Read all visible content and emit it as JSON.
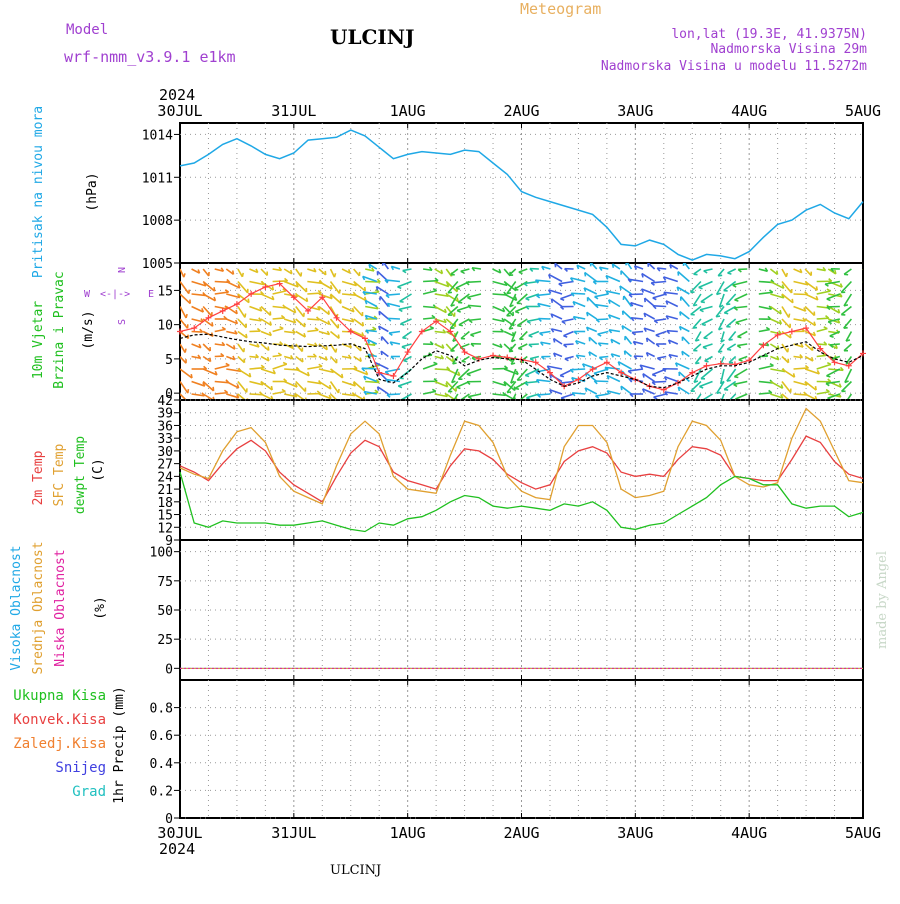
{
  "header": {
    "model_label": "Model",
    "model_name": "wrf-nmm_v3.9.1 e1km",
    "station": "ULCINJ",
    "product": "Meteogram",
    "coords": "lon,lat (19.3E, 41.9375N)",
    "elevation": "Nadmorska Visina 29m",
    "model_elevation": "Nadmorska Visina u modelu 11.5272m",
    "credit": "made by Angel",
    "footer_station": "ULCINJ"
  },
  "time_axis": {
    "year": "2024",
    "ticks": [
      "30JUL",
      "31JUL",
      "1AUG",
      "2AUG",
      "3AUG",
      "4AUG",
      "5AUG"
    ],
    "start": "2024-07-30T00:00",
    "end": "2024-08-05T00:00"
  },
  "colors": {
    "pressure": "#1fa8e6",
    "wind_speed": "#000000",
    "gust": "#ff4040",
    "t2m": "#e84040",
    "tsfc": "#e0a030",
    "dewpoint": "#20c020",
    "cloud_high": "#1fa8e6",
    "cloud_mid": "#e0a030",
    "cloud_low": "#e020a0",
    "grid": "#808080",
    "title_orange": "#e8b060",
    "title_purple": "#a040d0"
  },
  "chart_data": [
    {
      "type": "line",
      "id": "pressure",
      "ylabel": [
        "Pritisak na nivou mora",
        "(hPa)"
      ],
      "ylim": [
        1005,
        1014.8
      ],
      "yticks": [
        1005,
        1008,
        1011,
        1014
      ],
      "grid": true,
      "series": [
        {
          "x": [
            "2024-07-30T00:00",
            "2024-07-30T03:00",
            "2024-07-30T06:00",
            "2024-07-30T09:00",
            "2024-07-30T12:00",
            "2024-07-30T15:00",
            "2024-07-30T18:00",
            "2024-07-30T21:00",
            "2024-07-31T00:00",
            "2024-07-31T03:00",
            "2024-07-31T06:00",
            "2024-07-31T09:00",
            "2024-07-31T12:00",
            "2024-07-31T15:00",
            "2024-07-31T18:00",
            "2024-07-31T21:00",
            "2024-08-01T00:00",
            "2024-08-01T03:00",
            "2024-08-01T06:00",
            "2024-08-01T09:00",
            "2024-08-01T12:00",
            "2024-08-01T15:00",
            "2024-08-01T18:00",
            "2024-08-01T21:00",
            "2024-08-02T00:00",
            "2024-08-02T03:00",
            "2024-08-02T06:00",
            "2024-08-02T09:00",
            "2024-08-02T12:00",
            "2024-08-02T15:00",
            "2024-08-02T18:00",
            "2024-08-02T21:00",
            "2024-08-03T00:00",
            "2024-08-03T03:00",
            "2024-08-03T06:00",
            "2024-08-03T09:00",
            "2024-08-03T12:00",
            "2024-08-03T15:00",
            "2024-08-03T18:00",
            "2024-08-03T21:00",
            "2024-08-04T00:00",
            "2024-08-04T03:00",
            "2024-08-04T06:00",
            "2024-08-04T09:00",
            "2024-08-04T12:00",
            "2024-08-04T15:00",
            "2024-08-04T18:00",
            "2024-08-04T21:00",
            "2024-08-05T00:00"
          ],
          "y": [
            1011.8,
            1012.0,
            1012.6,
            1013.3,
            1013.7,
            1013.2,
            1012.6,
            1012.3,
            1012.7,
            1013.6,
            1013.7,
            1013.8,
            1014.3,
            1013.9,
            1013.1,
            1012.3,
            1012.6,
            1012.8,
            1012.7,
            1012.6,
            1012.9,
            1012.8,
            1012.0,
            1011.2,
            1010.0,
            1009.6,
            1009.3,
            1009.0,
            1008.7,
            1008.4,
            1007.5,
            1006.3,
            1006.2,
            1006.6,
            1006.3,
            1005.6,
            1005.2,
            1005.6,
            1005.5,
            1005.3,
            1005.8,
            1006.8,
            1007.7,
            1008.0,
            1008.7,
            1009.1,
            1008.5,
            1008.1,
            1009.3
          ]
        }
      ]
    },
    {
      "type": "line",
      "id": "wind",
      "ylabel": [
        "10m Vjetar",
        "Brzina i Pravac",
        "(m/s)"
      ],
      "compass": {
        "n": "N",
        "w": "W",
        "e": "E",
        "s": "S"
      },
      "ylim": [
        -1,
        19
      ],
      "yticks": [
        0,
        5,
        10,
        15
      ],
      "grid": true,
      "series": [
        {
          "name": "speed",
          "y": [
            8.0,
            8.5,
            8.6,
            8.2,
            7.8,
            7.5,
            7.3,
            7.0,
            6.9,
            6.8,
            6.9,
            7.0,
            7.2,
            6.5,
            2.0,
            1.5,
            3.0,
            5.0,
            6.2,
            5.5,
            4.0,
            4.8,
            5.2,
            5.0,
            4.9,
            3.5,
            2.0,
            1.0,
            1.5,
            2.5,
            3.0,
            2.5,
            2.0,
            1.0,
            0.8,
            1.5,
            2.5,
            3.5,
            4.0,
            4.0,
            4.5,
            5.5,
            6.5,
            7.0,
            7.5,
            6.0,
            5.0,
            4.5,
            5.5
          ]
        },
        {
          "name": "gust",
          "y": [
            9.0,
            9.5,
            11.0,
            12.0,
            13.0,
            14.5,
            15.5,
            16.0,
            14.0,
            12.0,
            14.0,
            11.0,
            9.0,
            8.0,
            3.0,
            2.5,
            6.0,
            9.0,
            10.5,
            9.0,
            6.0,
            5.0,
            5.5,
            5.2,
            4.9,
            4.5,
            3.0,
            1.0,
            2.0,
            3.5,
            4.5,
            3.0,
            2.0,
            1.0,
            0.5,
            1.5,
            3.0,
            4.0,
            4.3,
            4.2,
            4.8,
            7.0,
            8.5,
            9.0,
            9.5,
            6.5,
            4.5,
            4.0,
            5.8
          ]
        }
      ]
    },
    {
      "type": "line",
      "id": "temperature",
      "ylabel": [
        "2m Temp",
        "SFC Temp",
        "dewpt Temp",
        "(C)"
      ],
      "ylim": [
        9,
        42
      ],
      "yticks": [
        9,
        12,
        15,
        18,
        21,
        24,
        27,
        30,
        33,
        36,
        39,
        42
      ],
      "grid": true,
      "series": [
        {
          "name": "2m Temp",
          "y": [
            26.5,
            25.0,
            23.0,
            27.0,
            30.5,
            32.5,
            30.0,
            25.0,
            22.0,
            20.0,
            18.0,
            24.0,
            29.5,
            32.5,
            31.0,
            25.0,
            23.0,
            22.0,
            21.0,
            26.5,
            30.5,
            30.0,
            28.0,
            24.5,
            22.5,
            21.0,
            22.0,
            27.5,
            30.0,
            31.0,
            29.5,
            25.0,
            24.0,
            24.5,
            24.0,
            28.0,
            31.0,
            30.5,
            29.0,
            24.0,
            23.5,
            23.0,
            23.0,
            28.0,
            33.5,
            32.0,
            27.5,
            24.5,
            23.5
          ]
        },
        {
          "name": "SFC Temp",
          "y": [
            26.0,
            24.5,
            23.5,
            30.0,
            34.5,
            35.5,
            32.0,
            24.0,
            20.5,
            19.0,
            17.5,
            26.5,
            34.0,
            37.0,
            34.0,
            24.0,
            21.0,
            20.5,
            20.0,
            29.0,
            37.0,
            36.0,
            32.0,
            24.0,
            20.5,
            19.0,
            18.5,
            31.0,
            36.0,
            36.0,
            32.0,
            21.0,
            19.0,
            19.5,
            20.5,
            31.0,
            37.0,
            36.0,
            32.5,
            24.0,
            22.0,
            21.5,
            22.5,
            33.0,
            40.0,
            37.0,
            30.0,
            23.0,
            22.5
          ]
        },
        {
          "name": "dewpt Temp",
          "y": [
            25.0,
            13.0,
            12.0,
            13.5,
            13.0,
            13.0,
            13.0,
            12.5,
            12.5,
            13.0,
            13.5,
            12.5,
            11.5,
            11.0,
            13.0,
            12.5,
            14.0,
            14.5,
            16.0,
            18.0,
            19.5,
            19.0,
            17.0,
            16.5,
            17.0,
            16.5,
            16.0,
            17.5,
            17.0,
            18.0,
            16.0,
            12.0,
            11.5,
            12.5,
            13.0,
            15.0,
            17.0,
            19.0,
            22.0,
            24.0,
            23.5,
            22.0,
            22.0,
            17.5,
            16.5,
            17.0,
            17.0,
            14.5,
            15.5
          ]
        }
      ]
    },
    {
      "type": "line",
      "id": "clouds",
      "ylabel": [
        "Visoka Oblacnost",
        "Srednja Oblacnost",
        "Niska Oblacnost",
        "(%)"
      ],
      "ylim": [
        -10,
        110
      ],
      "yticks": [
        0,
        25,
        50,
        75,
        100
      ],
      "grid": true,
      "series": [
        {
          "name": "Visoka Oblacnost",
          "constant": 0
        },
        {
          "name": "Srednja Oblacnost",
          "constant": 0
        },
        {
          "name": "Niska Oblacnost",
          "constant": 0
        }
      ]
    },
    {
      "type": "line",
      "id": "precip",
      "ylabel": [
        "1hr Precip (mm)"
      ],
      "legend": [
        "Ukupna Kisa",
        "Konvek.Kisa",
        "Zaledj.Kisa",
        "Snijeg",
        "Grad"
      ],
      "legend_colors": [
        "#20c020",
        "#e84040",
        "#f08030",
        "#4040e0",
        "#20c0c0"
      ],
      "ylim": [
        0,
        1.0
      ],
      "yticks": [
        0,
        0.2,
        0.4,
        0.6,
        0.8
      ],
      "grid": true,
      "series": [
        {
          "name": "Ukupna Kisa",
          "constant": 0
        }
      ]
    }
  ]
}
